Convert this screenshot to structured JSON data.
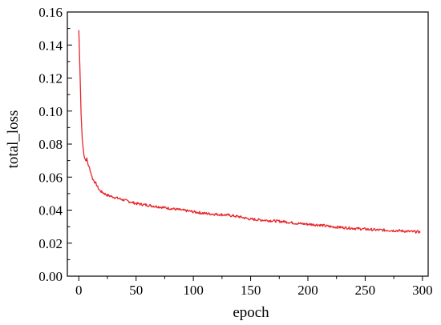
{
  "chart_data": {
    "type": "line",
    "xlabel": "epoch",
    "ylabel": "total_loss",
    "xlim": [
      -10,
      305
    ],
    "ylim": [
      0,
      0.16
    ],
    "x_ticks": [
      0,
      50,
      100,
      150,
      200,
      250,
      300
    ],
    "y_ticks": [
      0.0,
      0.02,
      0.04,
      0.06,
      0.08,
      0.1,
      0.12,
      0.14,
      0.16
    ],
    "x_tick_labels": [
      "0",
      "50",
      "100",
      "150",
      "200",
      "250",
      "300"
    ],
    "y_tick_labels": [
      "0.00",
      "0.02",
      "0.04",
      "0.06",
      "0.08",
      "0.10",
      "0.12",
      "0.14",
      "0.16"
    ],
    "grid": false,
    "legend": "none",
    "series": [
      {
        "color": "#e8262b",
        "x": [
          0,
          1,
          2,
          3,
          4,
          5,
          6,
          7,
          8,
          10,
          12,
          15,
          18,
          20,
          25,
          30,
          35,
          40,
          50,
          60,
          70,
          80,
          90,
          100,
          110,
          120,
          130,
          140,
          150,
          160,
          170,
          180,
          190,
          200,
          210,
          220,
          230,
          240,
          250,
          260,
          270,
          280,
          290,
          298
        ],
        "y": [
          0.149,
          0.125,
          0.098,
          0.083,
          0.076,
          0.072,
          0.07,
          0.071,
          0.068,
          0.064,
          0.059,
          0.056,
          0.052,
          0.051,
          0.049,
          0.048,
          0.047,
          0.046,
          0.044,
          0.043,
          0.042,
          0.041,
          0.04,
          0.039,
          0.038,
          0.0375,
          0.037,
          0.036,
          0.0345,
          0.034,
          0.0335,
          0.033,
          0.032,
          0.0315,
          0.031,
          0.03,
          0.0295,
          0.029,
          0.0285,
          0.028,
          0.0278,
          0.0275,
          0.027,
          0.0268
        ]
      }
    ]
  }
}
